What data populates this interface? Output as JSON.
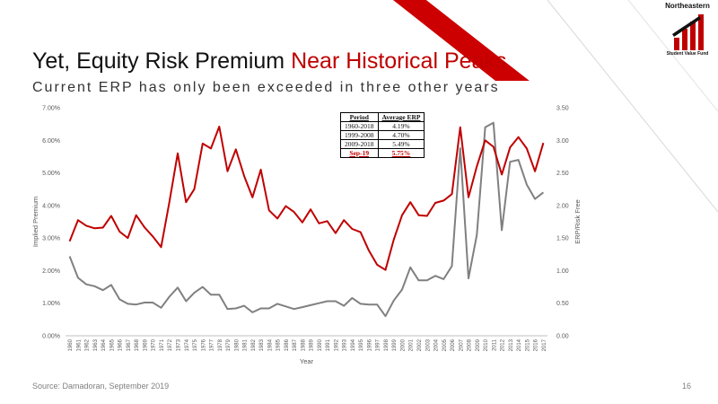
{
  "slide": {
    "title_main": "Yet, Equity Risk Premium",
    "title_accent": "Near Historical Peaks",
    "subtitle": "Current ERP has only been exceeded in three other years",
    "source": "Source: Damadoran, September 2019",
    "page_number": "16"
  },
  "logo": {
    "name": "Northeastern",
    "subtitle": "Student Value Fund"
  },
  "colors": {
    "accent": "#c00000",
    "erp_line": "#c00000",
    "ratio_line": "#808080",
    "decor_red": "#cc0000"
  },
  "summary_table": {
    "headers": [
      "Period",
      "Average ERP"
    ],
    "rows": [
      [
        "1960-2018",
        "4.19%"
      ],
      [
        "1999-2008",
        "4.70%"
      ],
      [
        "2009-2018",
        "5.49%"
      ]
    ],
    "highlight_row": [
      "Sep-19",
      "5.75%"
    ]
  },
  "chart_data": {
    "type": "line",
    "xlabel": "Year",
    "ylabel": "Implied Premium",
    "y2label": "ERP/Risk Free",
    "ylim": [
      0,
      7
    ],
    "y2lim": [
      0,
      3.5
    ],
    "yticks": [
      "0.00%",
      "1.00%",
      "2.00%",
      "3.00%",
      "4.00%",
      "5.00%",
      "6.00%",
      "7.00%"
    ],
    "y2ticks": [
      "0.00",
      "0.50",
      "1.00",
      "1.50",
      "2.00",
      "2.50",
      "3.00",
      "3.50"
    ],
    "grid": false,
    "categories": [
      "1960",
      "1961",
      "1962",
      "1963",
      "1964",
      "1965",
      "1966",
      "1967",
      "1968",
      "1969",
      "1970",
      "1971",
      "1972",
      "1973",
      "1974",
      "1975",
      "1976",
      "1977",
      "1978",
      "1979",
      "1980",
      "1981",
      "1982",
      "1983",
      "1984",
      "1985",
      "1986",
      "1987",
      "1988",
      "1989",
      "1990",
      "1991",
      "1992",
      "1993",
      "1994",
      "1995",
      "1996",
      "1997",
      "1998",
      "1999",
      "2000",
      "2001",
      "2002",
      "2003",
      "2004",
      "2005",
      "2006",
      "2007",
      "2008",
      "2009",
      "2010",
      "2011",
      "2012",
      "2013",
      "2014",
      "2015",
      "2016",
      "2017"
    ],
    "series": [
      {
        "axis": "left",
        "values": [
          2.9,
          3.55,
          3.38,
          3.3,
          3.32,
          3.68,
          3.2,
          3.0,
          3.7,
          3.33,
          3.05,
          2.72,
          4.1,
          5.6,
          4.1,
          4.5,
          5.9,
          5.75,
          6.42,
          5.05,
          5.72,
          4.9,
          4.25,
          5.1,
          3.85,
          3.6,
          3.98,
          3.8,
          3.48,
          3.88,
          3.45,
          3.52,
          3.15,
          3.55,
          3.28,
          3.18,
          2.62,
          2.18,
          2.02,
          2.95,
          3.7,
          4.1,
          3.7,
          3.68,
          4.08,
          4.15,
          4.35,
          6.4,
          4.25,
          5.2,
          6.0,
          5.8,
          4.95,
          5.78,
          6.1,
          5.75,
          5.05,
          5.92
        ]
      },
      {
        "axis": "right",
        "values": [
          1.22,
          0.89,
          0.79,
          0.76,
          0.7,
          0.78,
          0.56,
          0.49,
          0.48,
          0.51,
          0.51,
          0.43,
          0.6,
          0.74,
          0.53,
          0.66,
          0.75,
          0.63,
          0.63,
          0.41,
          0.42,
          0.46,
          0.36,
          0.42,
          0.42,
          0.49,
          0.45,
          0.41,
          0.44,
          0.47,
          0.5,
          0.53,
          0.53,
          0.46,
          0.58,
          0.49,
          0.48,
          0.48,
          0.3,
          0.54,
          0.71,
          1.05,
          0.85,
          0.85,
          0.92,
          0.87,
          1.07,
          2.88,
          0.88,
          1.55,
          3.2,
          3.27,
          1.62,
          2.67,
          2.7,
          2.32,
          2.1,
          2.2
        ]
      }
    ]
  }
}
